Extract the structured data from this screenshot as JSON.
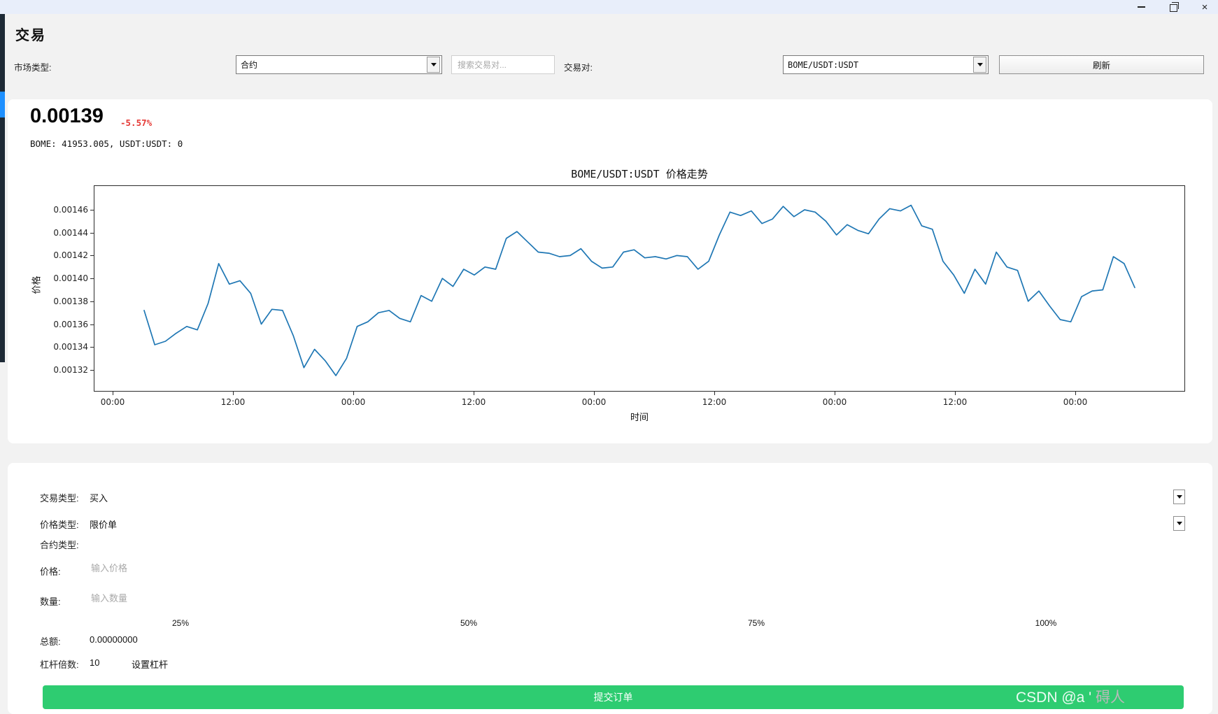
{
  "window": {},
  "page": {
    "title": "交易"
  },
  "toolbar": {
    "market_type_label": "市场类型:",
    "market_type_value": "合约",
    "search_placeholder": "搜索交易对...",
    "pair_label": "交易对:",
    "pair_value": "BOME/USDT:USDT",
    "refresh_label": "刷新"
  },
  "ticker": {
    "price": "0.00139",
    "change": "-5.57%",
    "change_color": "#e53935",
    "balances": "BOME: 41953.005, USDT:USDT: 0"
  },
  "chart_data": {
    "type": "line",
    "title": "BOME/USDT:USDT 价格走势",
    "xlabel": "时间",
    "ylabel": "价格",
    "x_ticks": [
      "00:00",
      "12:00",
      "00:00",
      "12:00",
      "00:00",
      "12:00",
      "00:00",
      "12:00",
      "00:00"
    ],
    "y_ticks": [
      0.00132,
      0.00134,
      0.00136,
      0.00138,
      0.0014,
      0.00142,
      0.00144,
      0.00146
    ],
    "ylim": [
      0.001301,
      0.0014814
    ],
    "grid": false,
    "legend": "none",
    "line_color": "#1f77b4",
    "values": [
      0.001372,
      0.001342,
      0.001345,
      0.001352,
      0.001358,
      0.001355,
      0.001378,
      0.001413,
      0.001395,
      0.001398,
      0.001387,
      0.00136,
      0.001373,
      0.001372,
      0.00135,
      0.001322,
      0.001338,
      0.001328,
      0.001315,
      0.00133,
      0.001358,
      0.001362,
      0.00137,
      0.001372,
      0.001365,
      0.001362,
      0.001385,
      0.00138,
      0.0014,
      0.001393,
      0.001408,
      0.001403,
      0.00141,
      0.001408,
      0.001435,
      0.001441,
      0.001432,
      0.001423,
      0.001422,
      0.001419,
      0.00142,
      0.001426,
      0.001415,
      0.001409,
      0.00141,
      0.001423,
      0.001425,
      0.001418,
      0.001419,
      0.001417,
      0.00142,
      0.001419,
      0.001408,
      0.001415,
      0.001438,
      0.001458,
      0.001455,
      0.001459,
      0.001448,
      0.001452,
      0.001463,
      0.001454,
      0.00146,
      0.001458,
      0.00145,
      0.001438,
      0.001447,
      0.001442,
      0.001439,
      0.001452,
      0.001461,
      0.001459,
      0.001464,
      0.001446,
      0.001443,
      0.001415,
      0.001403,
      0.001387,
      0.001408,
      0.001395,
      0.001423,
      0.00141,
      0.001407,
      0.00138,
      0.001389,
      0.001376,
      0.001364,
      0.001362,
      0.001384,
      0.001389,
      0.00139,
      0.001419,
      0.001413,
      0.001392
    ]
  },
  "order_form": {
    "trade_type_label": "交易类型:",
    "trade_type_value": "买入",
    "price_type_label": "价格类型:",
    "price_type_value": "限价单",
    "contract_type_label": "合约类型:",
    "price_label": "价格:",
    "price_placeholder": "输入价格",
    "amount_label": "数量:",
    "amount_placeholder": "输入数量",
    "percents": [
      "25%",
      "50%",
      "75%",
      "100%"
    ],
    "total_label": "总额:",
    "total_value": "0.00000000",
    "leverage_label": "杠杆倍数:",
    "leverage_value": "10",
    "set_leverage_label": "设置杠杆",
    "submit_label": "提交订单",
    "submit_color": "#2ecc71"
  },
  "watermark": {
    "part1": "CSDN @a '",
    "part2": " 碍人"
  }
}
